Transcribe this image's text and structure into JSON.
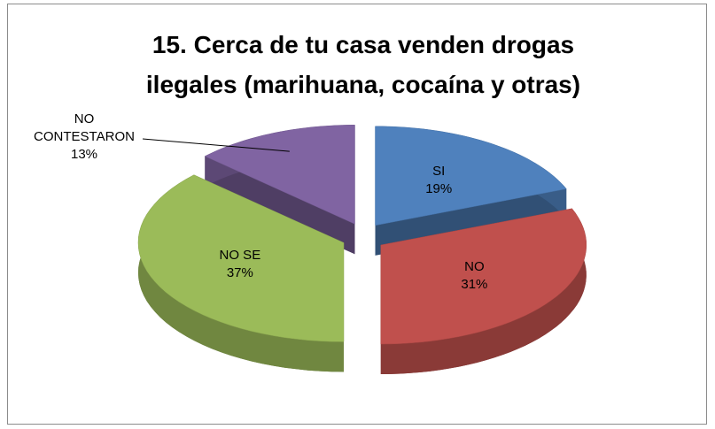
{
  "chart_data": {
    "type": "pie",
    "title": "15. Cerca de tu casa venden drogas ilegales (marihuana, cocaína y otras)",
    "categories": [
      "SI",
      "NO",
      "NO SE",
      "NO CONTESTARON"
    ],
    "values": [
      19,
      31,
      37,
      13
    ],
    "value_labels": [
      "19%",
      "31%",
      "37%",
      "13%"
    ],
    "colors": [
      "#4f81bd",
      "#c0504d",
      "#9bbb59",
      "#8064a2"
    ]
  }
}
